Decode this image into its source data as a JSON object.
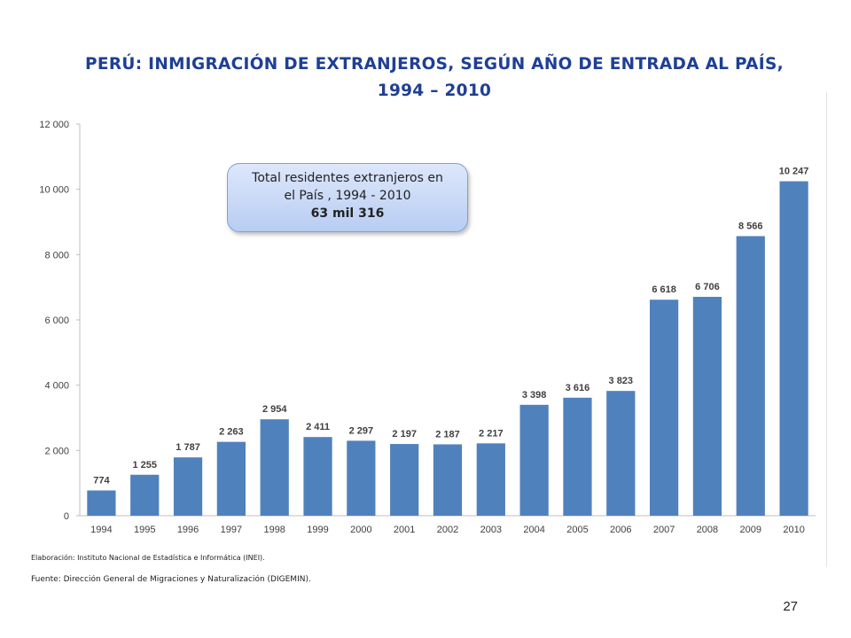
{
  "title": {
    "line1": "PERÚ:  INMIGRACIÓN DE EXTRANJEROS, SEGÚN AÑO DE ENTRADA AL PAÍS,",
    "line2": "1994 – 2010"
  },
  "callout": {
    "line1": "Total residentes extranjeros en",
    "line2": "el País , 1994 - 2010",
    "total": "63 mil 316"
  },
  "notes": {
    "elaboracion": "Elaboración: Instituto Nacional de Estadística e Informática (INEI).",
    "fuente": "Fuente: Dirección General de Migraciones y Naturalización (DIGEMIN)."
  },
  "page_number": "27",
  "colors": {
    "bar": "#4f81bd",
    "title": "#1f3f95"
  },
  "chart_data": {
    "type": "bar",
    "title": "PERÚ:  INMIGRACIÓN DE EXTRANJEROS, SEGÚN AÑO DE ENTRADA AL PAÍS, 1994 – 2010",
    "categories": [
      "1994",
      "1995",
      "1996",
      "1997",
      "1998",
      "1999",
      "2000",
      "2001",
      "2002",
      "2003",
      "2004",
      "2005",
      "2006",
      "2007",
      "2008",
      "2009",
      "2010"
    ],
    "values": [
      774,
      1255,
      1787,
      2263,
      2954,
      2411,
      2297,
      2197,
      2187,
      2217,
      3398,
      3616,
      3823,
      6618,
      6706,
      8566,
      10247
    ],
    "data_labels": [
      "774",
      "1 255",
      "1 787",
      "2 263",
      "2 954",
      "2 411",
      "2 297",
      "2 197",
      "2 187",
      "2 217",
      "3 398",
      "3 616",
      "3 823",
      "6 618",
      "6 706",
      "8 566",
      "10 247"
    ],
    "yticks": [
      0,
      2000,
      4000,
      6000,
      8000,
      10000,
      12000
    ],
    "ytick_labels": [
      "0",
      "2 000",
      "4 000",
      "6 000",
      "8 000",
      "10 000",
      "12 000"
    ],
    "ylim": [
      0,
      12000
    ],
    "xlabel": "",
    "ylabel": "",
    "grid": false,
    "legend": "none"
  }
}
